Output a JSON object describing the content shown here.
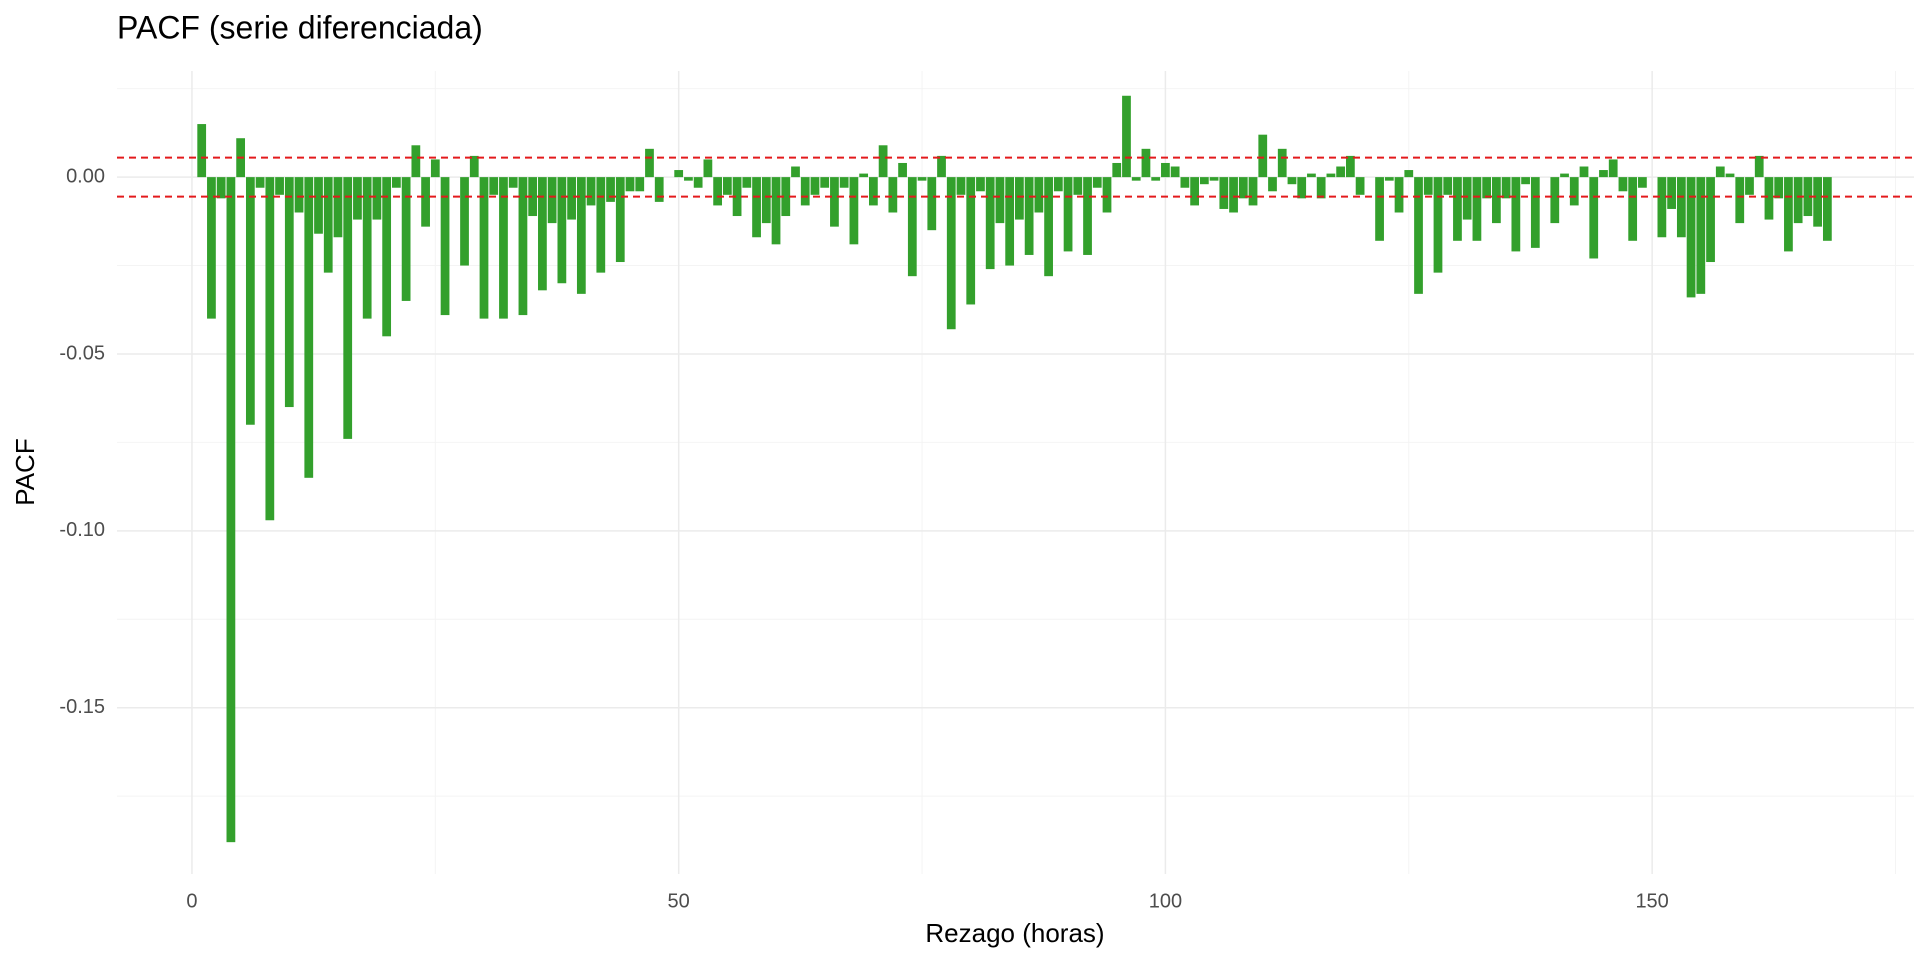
{
  "chart_data": {
    "type": "bar",
    "title": "PACF (serie diferenciada)",
    "x_label": "Rezago (horas)",
    "y_label": "PACF",
    "color": "#33a02c",
    "grid": true,
    "ci": 0.0055,
    "ci_color": "#e31a1c",
    "xlim": [
      -7.7,
      176.9
    ],
    "ylim": [
      -0.197,
      0.03
    ],
    "xticks": [
      0,
      50,
      100,
      150
    ],
    "xminor": [
      25,
      75,
      125,
      175
    ],
    "yticks": [
      {
        "value": 0,
        "label": "0.00"
      },
      {
        "value": -0.05,
        "label": "-0.05"
      },
      {
        "value": -0.1,
        "label": "-0.10"
      },
      {
        "value": -0.15,
        "label": "-0.15"
      }
    ],
    "yminor": [
      0.025,
      -0.025,
      -0.075,
      -0.125,
      -0.175
    ],
    "x": [
      1,
      2,
      3,
      4,
      5,
      6,
      7,
      8,
      9,
      10,
      11,
      12,
      13,
      14,
      15,
      16,
      17,
      18,
      19,
      20,
      21,
      22,
      23,
      24,
      25,
      26,
      27,
      28,
      29,
      30,
      31,
      32,
      33,
      34,
      35,
      36,
      37,
      38,
      39,
      40,
      41,
      42,
      43,
      44,
      45,
      46,
      47,
      48,
      49,
      50,
      51,
      52,
      53,
      54,
      55,
      56,
      57,
      58,
      59,
      60,
      61,
      62,
      63,
      64,
      65,
      66,
      67,
      68,
      69,
      70,
      71,
      72,
      73,
      74,
      75,
      76,
      77,
      78,
      79,
      80,
      81,
      82,
      83,
      84,
      85,
      86,
      87,
      88,
      89,
      90,
      91,
      92,
      93,
      94,
      95,
      96,
      97,
      98,
      99,
      100,
      101,
      102,
      103,
      104,
      105,
      106,
      107,
      108,
      109,
      110,
      111,
      112,
      113,
      114,
      115,
      116,
      117,
      118,
      119,
      120,
      121,
      122,
      123,
      124,
      125,
      126,
      127,
      128,
      129,
      130,
      131,
      132,
      133,
      134,
      135,
      136,
      137,
      138,
      139,
      140,
      141,
      142,
      143,
      144,
      145,
      146,
      147,
      148,
      149,
      150,
      151,
      152,
      153,
      154,
      155,
      156,
      157,
      158,
      159,
      160,
      161,
      162,
      163,
      164,
      165,
      166,
      167,
      168
    ],
    "values": [
      0.015,
      -0.04,
      -0.006,
      -0.188,
      0.011,
      -0.07,
      -0.003,
      -0.097,
      -0.005,
      -0.065,
      -0.01,
      -0.085,
      -0.016,
      -0.027,
      -0.017,
      -0.074,
      -0.012,
      -0.04,
      -0.012,
      -0.045,
      -0.003,
      -0.035,
      0.009,
      -0.014,
      0.005,
      -0.039,
      0.0,
      -0.025,
      0.006,
      -0.04,
      -0.005,
      -0.04,
      -0.003,
      -0.039,
      -0.011,
      -0.032,
      -0.013,
      -0.03,
      -0.012,
      -0.033,
      -0.008,
      -0.027,
      -0.007,
      -0.024,
      -0.004,
      -0.004,
      0.008,
      -0.007,
      0.0,
      0.002,
      -0.001,
      -0.003,
      0.005,
      -0.008,
      -0.005,
      -0.011,
      -0.003,
      -0.017,
      -0.013,
      -0.019,
      -0.011,
      0.003,
      -0.008,
      -0.005,
      -0.003,
      -0.014,
      -0.003,
      -0.019,
      0.001,
      -0.008,
      0.009,
      -0.01,
      0.004,
      -0.028,
      -0.001,
      -0.015,
      0.006,
      -0.043,
      -0.005,
      -0.036,
      -0.004,
      -0.026,
      -0.013,
      -0.025,
      -0.012,
      -0.022,
      -0.01,
      -0.028,
      -0.004,
      -0.021,
      -0.005,
      -0.022,
      -0.003,
      -0.01,
      0.004,
      0.023,
      -0.001,
      0.008,
      -0.001,
      0.004,
      0.003,
      -0.003,
      -0.008,
      -0.002,
      -0.001,
      -0.009,
      -0.01,
      -0.006,
      -0.008,
      0.012,
      -0.004,
      0.008,
      -0.002,
      -0.006,
      0.001,
      -0.006,
      0.001,
      0.003,
      0.006,
      -0.005,
      0.0,
      -0.018,
      -0.001,
      -0.01,
      0.002,
      -0.033,
      -0.005,
      -0.027,
      -0.005,
      -0.018,
      -0.012,
      -0.018,
      -0.006,
      -0.013,
      -0.006,
      -0.021,
      -0.002,
      -0.02,
      0.0,
      -0.013,
      0.001,
      -0.008,
      0.003,
      -0.023,
      0.002,
      0.005,
      -0.004,
      -0.018,
      -0.003,
      0.0,
      -0.017,
      -0.009,
      -0.017,
      -0.034,
      -0.033,
      -0.024,
      0.003,
      0.001,
      -0.013,
      -0.005,
      0.006,
      -0.012,
      -0.006,
      -0.021,
      -0.013,
      -0.011,
      -0.014,
      -0.018
    ]
  }
}
